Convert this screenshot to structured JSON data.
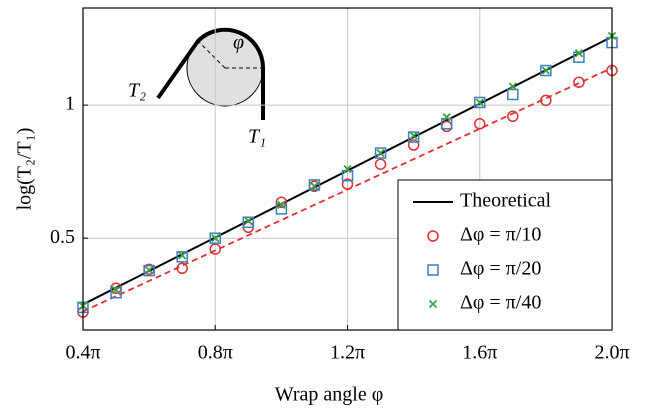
{
  "chart_data": {
    "type": "line",
    "x_label": "Wrap angle φ",
    "y_label": "log(T₂/T₁)",
    "xlim": [
      0.4,
      2.0
    ],
    "ylim": [
      0.155,
      1.365
    ],
    "xticks": [
      {
        "value": 0.4,
        "label": "0.4π"
      },
      {
        "value": 0.8,
        "label": "0.8π"
      },
      {
        "value": 1.2,
        "label": "1.2π"
      },
      {
        "value": 1.6,
        "label": "1.6π"
      },
      {
        "value": 2.0,
        "label": "2.0π"
      }
    ],
    "yticks": [
      0.5,
      1
    ],
    "grid": true,
    "legend": "lower right",
    "annotations": [
      "φ",
      "T₂",
      "T₁"
    ],
    "series": [
      {
        "name": "Theoretical",
        "color": "#000000",
        "marker": "line",
        "x": [
          0.4,
          2.0
        ],
        "values": [
          0.251,
          1.257
        ]
      },
      {
        "name": "Δφ = π/10",
        "color": "#e03030",
        "marker": "circle",
        "x": [
          0.4,
          0.5,
          0.6,
          0.7,
          0.8,
          0.9,
          1.0,
          1.1,
          1.2,
          1.3,
          1.4,
          1.5,
          1.6,
          1.7,
          1.8,
          1.9,
          2.0
        ],
        "values": [
          0.222,
          0.312,
          0.383,
          0.387,
          0.459,
          0.541,
          0.635,
          0.695,
          0.703,
          0.778,
          0.85,
          0.92,
          0.93,
          0.958,
          1.018,
          1.086,
          1.13
        ]
      },
      {
        "name": "Δφ = π/20",
        "color": "#3a7fc0",
        "marker": "square",
        "x": [
          0.4,
          0.5,
          0.6,
          0.7,
          0.8,
          0.9,
          1.0,
          1.1,
          1.2,
          1.3,
          1.4,
          1.5,
          1.6,
          1.7,
          1.8,
          1.9,
          2.0
        ],
        "values": [
          0.24,
          0.295,
          0.378,
          0.43,
          0.5,
          0.56,
          0.61,
          0.7,
          0.735,
          0.82,
          0.88,
          0.93,
          1.01,
          1.04,
          1.13,
          1.18,
          1.235
        ]
      },
      {
        "name": "Δφ = π/40",
        "color": "#3aa040",
        "marker": "cross",
        "x": [
          0.4,
          0.5,
          0.6,
          0.7,
          0.8,
          0.9,
          1.0,
          1.1,
          1.2,
          1.3,
          1.4,
          1.5,
          1.6,
          1.7,
          1.8,
          1.9,
          2.0
        ],
        "values": [
          0.245,
          0.305,
          0.38,
          0.435,
          0.5,
          0.565,
          0.625,
          0.695,
          0.76,
          0.82,
          0.885,
          0.955,
          1.01,
          1.07,
          1.13,
          1.195,
          1.26
        ]
      }
    ],
    "fit_lines": [
      {
        "color": "#e03030",
        "x": [
          0.4,
          2.0
        ],
        "values": [
          0.225,
          1.14
        ]
      }
    ]
  }
}
